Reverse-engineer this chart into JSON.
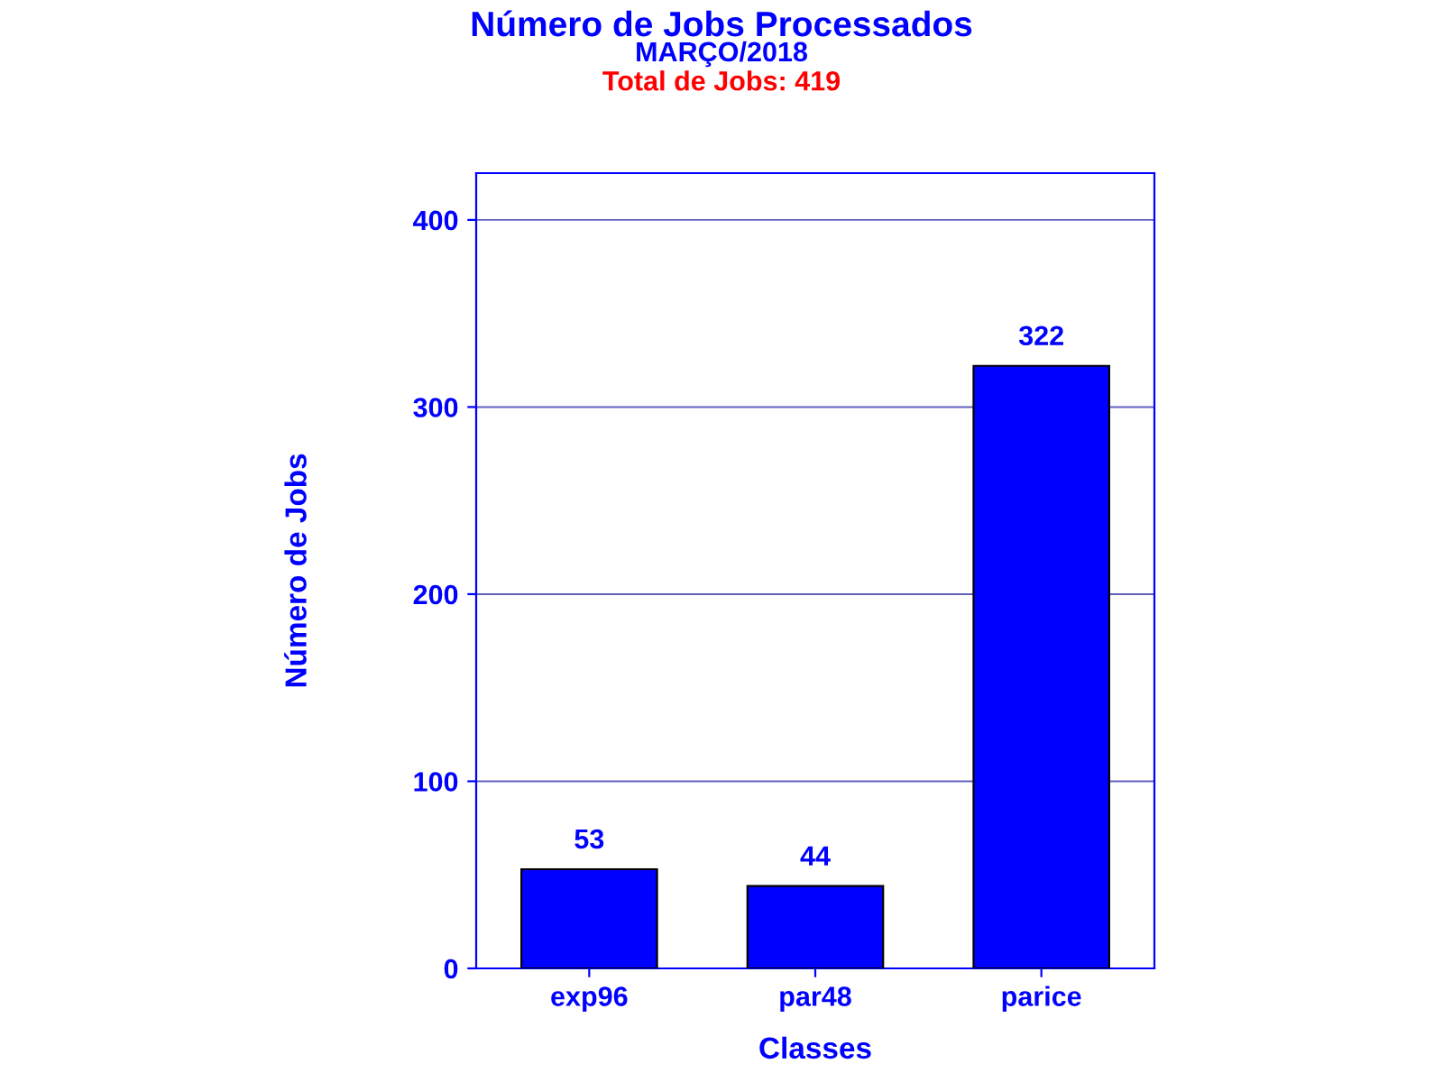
{
  "chart_data": {
    "type": "bar",
    "title": "Número de Jobs Processados",
    "subtitle": "MARÇO/2018",
    "annotations": [
      "Total de Jobs: 419"
    ],
    "xlabel": "Classes",
    "ylabel": "Número de Jobs",
    "categories": [
      "exp96",
      "par48",
      "parice"
    ],
    "values": [
      53,
      44,
      322
    ],
    "color": "#0000ff",
    "ylim": [
      0,
      425
    ],
    "yticks": [
      0,
      100,
      200,
      300,
      400
    ],
    "grid": "y",
    "data_labels": true
  }
}
